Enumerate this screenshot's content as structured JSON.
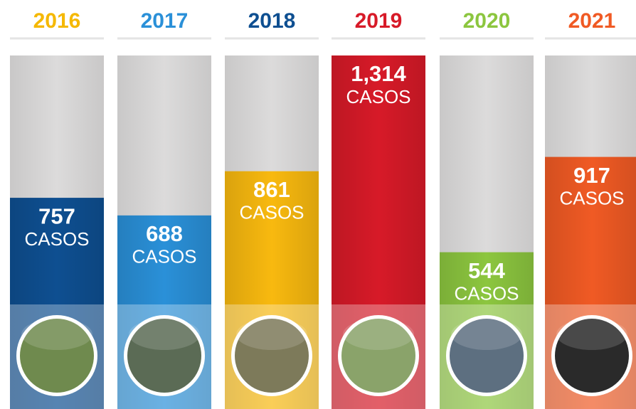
{
  "chart_data": {
    "type": "bar",
    "categories": [
      "2016",
      "2017",
      "2018",
      "2019",
      "2020",
      "2021"
    ],
    "values": [
      757,
      688,
      861,
      1314,
      544,
      917
    ],
    "value_labels": [
      "757",
      "688",
      "861",
      "1,314",
      "544",
      "917"
    ],
    "unit_label": "CASOS",
    "colors": [
      "#0e4f91",
      "#2a90d8",
      "#f8b90f",
      "#d71a28",
      "#8cc63f",
      "#f05a24"
    ],
    "category_label_colors": [
      "#f5b800",
      "#2a90d8",
      "#0e4f91",
      "#d71a28",
      "#8cc63f",
      "#f05a24"
    ]
  }
}
